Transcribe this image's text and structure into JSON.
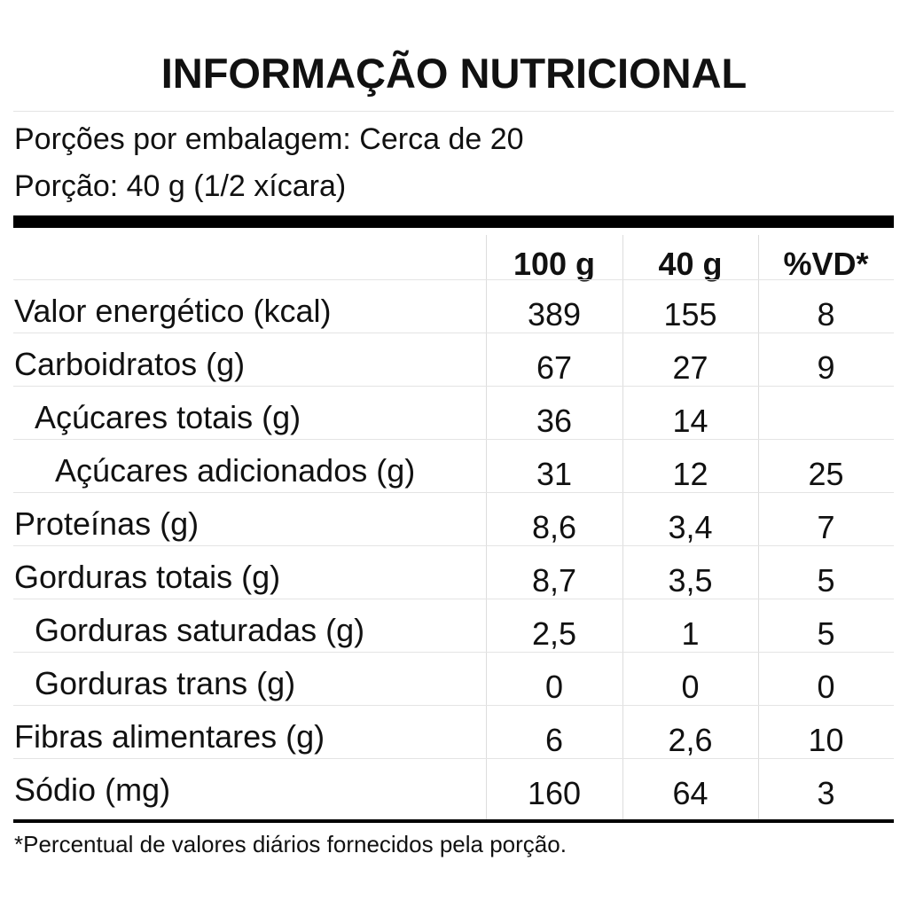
{
  "title": "INFORMAÇÃO NUTRICIONAL",
  "servings": [
    "Porções por embalagem: Cerca de 20",
    "Porção: 40 g (1/2 xícara)"
  ],
  "table": {
    "header": [
      "100 g",
      "40 g",
      "%VD*"
    ],
    "rows": [
      [
        "Valor energético (kcal)",
        "389",
        "155",
        "8"
      ],
      [
        "Carboidratos (g)",
        "67",
        "27",
        "9"
      ],
      [
        "Açúcares totais (g)",
        "36",
        "14",
        null
      ],
      [
        "Açúcares adicionados (g)",
        "31",
        "12",
        "25"
      ],
      [
        "Proteínas (g)",
        "8,6",
        "3,4",
        "7"
      ],
      [
        "Gorduras totais (g)",
        "8,7",
        "3,5",
        "5"
      ],
      [
        "Gorduras saturadas (g)",
        "2,5",
        "1",
        "5"
      ],
      [
        "Gorduras trans (g)",
        "0",
        "0",
        "0"
      ],
      [
        "Fibras alimentares (g)",
        "6",
        "2,6",
        "10"
      ],
      [
        "Sódio (mg)",
        "160",
        "64",
        "3"
      ]
    ]
  },
  "footnote": "*Percentual de valores diários fornecidos pela porção."
}
